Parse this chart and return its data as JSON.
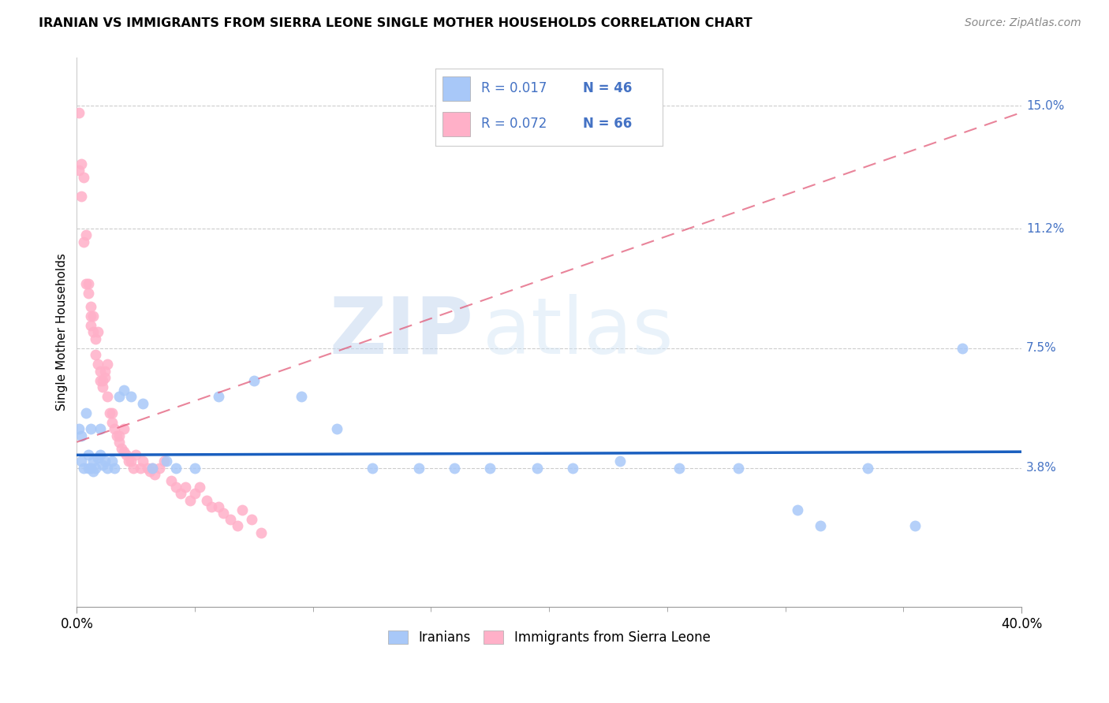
{
  "title": "IRANIAN VS IMMIGRANTS FROM SIERRA LEONE SINGLE MOTHER HOUSEHOLDS CORRELATION CHART",
  "source": "Source: ZipAtlas.com",
  "ylabel": "Single Mother Households",
  "watermark_zip": "ZIP",
  "watermark_atlas": "atlas",
  "xlim": [
    0.0,
    0.4
  ],
  "ylim": [
    -0.005,
    0.165
  ],
  "ytick_vals": [
    0.038,
    0.075,
    0.112,
    0.15
  ],
  "ytick_labels": [
    "3.8%",
    "7.5%",
    "11.2%",
    "15.0%"
  ],
  "iranian_color": "#a8c8f8",
  "iranian_edge": "#7aaee8",
  "sierra_color": "#ffb0c8",
  "sierra_edge": "#ee8aaa",
  "iranian_line_color": "#1a5fbf",
  "sierra_line_color": "#e05070",
  "iranians_label": "Iranians",
  "sierra_label": "Immigrants from Sierra Leone",
  "legend_r1": "R = 0.017",
  "legend_n1": "N = 46",
  "legend_r2": "R = 0.072",
  "legend_n2": "N = 66",
  "legend_text_color": "#4472c4",
  "legend_n_color": "#4472c4",
  "iranian_x": [
    0.001,
    0.002,
    0.002,
    0.003,
    0.004,
    0.005,
    0.005,
    0.006,
    0.006,
    0.007,
    0.007,
    0.008,
    0.009,
    0.01,
    0.01,
    0.011,
    0.012,
    0.013,
    0.015,
    0.016,
    0.018,
    0.02,
    0.023,
    0.028,
    0.032,
    0.038,
    0.042,
    0.05,
    0.06,
    0.075,
    0.095,
    0.11,
    0.125,
    0.145,
    0.16,
    0.175,
    0.195,
    0.21,
    0.23,
    0.255,
    0.28,
    0.305,
    0.335,
    0.355,
    0.315,
    0.375
  ],
  "iranian_y": [
    0.05,
    0.048,
    0.04,
    0.038,
    0.055,
    0.038,
    0.042,
    0.038,
    0.05,
    0.037,
    0.04,
    0.038,
    0.041,
    0.042,
    0.05,
    0.039,
    0.04,
    0.038,
    0.04,
    0.038,
    0.06,
    0.062,
    0.06,
    0.058,
    0.038,
    0.04,
    0.038,
    0.038,
    0.06,
    0.065,
    0.06,
    0.05,
    0.038,
    0.038,
    0.038,
    0.038,
    0.038,
    0.038,
    0.04,
    0.038,
    0.038,
    0.025,
    0.038,
    0.02,
    0.02,
    0.075
  ],
  "sierra_x": [
    0.001,
    0.001,
    0.002,
    0.002,
    0.003,
    0.003,
    0.004,
    0.004,
    0.005,
    0.005,
    0.006,
    0.006,
    0.006,
    0.007,
    0.007,
    0.008,
    0.008,
    0.009,
    0.009,
    0.01,
    0.01,
    0.011,
    0.011,
    0.012,
    0.012,
    0.013,
    0.013,
    0.014,
    0.015,
    0.015,
    0.016,
    0.017,
    0.018,
    0.019,
    0.02,
    0.02,
    0.021,
    0.022,
    0.023,
    0.024,
    0.025,
    0.027,
    0.028,
    0.03,
    0.031,
    0.033,
    0.035,
    0.037,
    0.04,
    0.042,
    0.044,
    0.046,
    0.048,
    0.05,
    0.052,
    0.055,
    0.057,
    0.06,
    0.062,
    0.065,
    0.068,
    0.07,
    0.074,
    0.078,
    0.032,
    0.018
  ],
  "sierra_y": [
    0.148,
    0.13,
    0.132,
    0.122,
    0.128,
    0.108,
    0.11,
    0.095,
    0.095,
    0.092,
    0.085,
    0.088,
    0.082,
    0.085,
    0.08,
    0.078,
    0.073,
    0.08,
    0.07,
    0.068,
    0.065,
    0.065,
    0.063,
    0.066,
    0.068,
    0.07,
    0.06,
    0.055,
    0.055,
    0.052,
    0.05,
    0.048,
    0.046,
    0.044,
    0.043,
    0.05,
    0.042,
    0.04,
    0.04,
    0.038,
    0.042,
    0.038,
    0.04,
    0.038,
    0.037,
    0.036,
    0.038,
    0.04,
    0.034,
    0.032,
    0.03,
    0.032,
    0.028,
    0.03,
    0.032,
    0.028,
    0.026,
    0.026,
    0.024,
    0.022,
    0.02,
    0.025,
    0.022,
    0.018,
    0.038,
    0.048
  ],
  "iranian_trend_x": [
    0.0,
    0.4
  ],
  "iranian_trend_y": [
    0.042,
    0.043
  ],
  "sierra_trend_x": [
    0.0,
    0.4
  ],
  "sierra_trend_y": [
    0.046,
    0.148
  ]
}
